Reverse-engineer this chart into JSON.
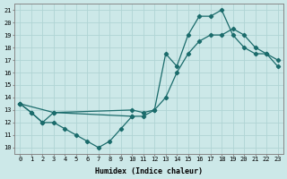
{
  "xlabel": "Humidex (Indice chaleur)",
  "ylabel": "",
  "bg_color": "#cce8e8",
  "grid_color": "#b0d4d4",
  "line_color": "#1a6b6b",
  "marker_color": "#1a6b6b",
  "xlim": [
    -0.5,
    23.5
  ],
  "ylim": [
    9.5,
    21.5
  ],
  "xticks": [
    0,
    1,
    2,
    3,
    4,
    5,
    6,
    7,
    8,
    9,
    10,
    11,
    12,
    13,
    14,
    15,
    16,
    17,
    18,
    19,
    20,
    21,
    22,
    23
  ],
  "yticks": [
    10,
    11,
    12,
    13,
    14,
    15,
    16,
    17,
    18,
    19,
    20,
    21
  ],
  "lines": [
    {
      "x": [
        0,
        1,
        2,
        3,
        4,
        5,
        6,
        7,
        8,
        9,
        10
      ],
      "y": [
        13.5,
        12.8,
        12.0,
        12.0,
        11.5,
        11.0,
        10.5,
        10.0,
        10.5,
        11.5,
        12.5
      ]
    },
    {
      "x": [
        0,
        3,
        10,
        11,
        12,
        13,
        14,
        15,
        16,
        17,
        18,
        19,
        20,
        21,
        22,
        23
      ],
      "y": [
        13.5,
        12.8,
        12.5,
        12.5,
        13.0,
        14.0,
        16.0,
        17.5,
        18.5,
        19.0,
        19.0,
        19.5,
        19.0,
        18.0,
        17.5,
        16.5
      ]
    },
    {
      "x": [
        0,
        1,
        2,
        3,
        10,
        11,
        12,
        13,
        14,
        15,
        16,
        17,
        18,
        19,
        20,
        21,
        22,
        23
      ],
      "y": [
        13.5,
        12.8,
        12.0,
        12.8,
        13.0,
        12.8,
        13.0,
        17.5,
        16.5,
        19.0,
        20.5,
        20.5,
        21.0,
        19.0,
        18.0,
        17.5,
        17.5,
        17.0
      ]
    }
  ]
}
